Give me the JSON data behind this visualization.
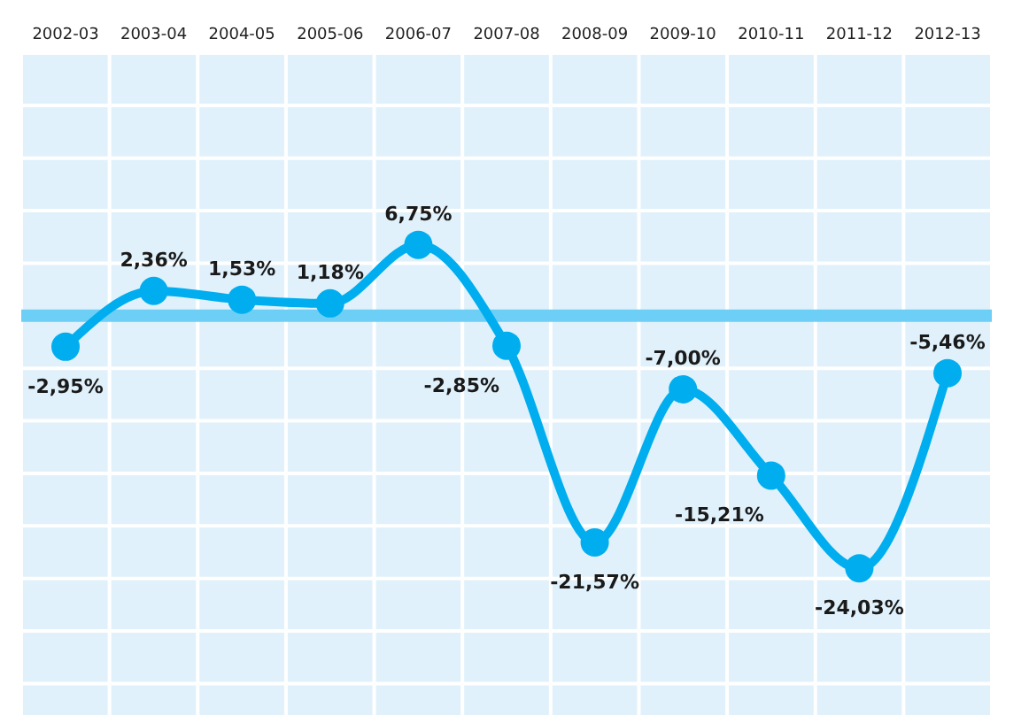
{
  "chart_data": {
    "type": "line",
    "categories": [
      "2002-03",
      "2003-04",
      "2004-05",
      "2005-06",
      "2006-07",
      "2007-08",
      "2008-09",
      "2009-10",
      "2010-11",
      "2011-12",
      "2012-13"
    ],
    "series": [
      {
        "color": "#00aeef",
        "values": [
          -2.95,
          2.36,
          1.53,
          1.18,
          6.75,
          -2.85,
          -21.57,
          -7.0,
          -15.21,
          -24.03,
          -5.46
        ],
        "value_labels": [
          "-2,95%",
          "2,36%",
          "1,53%",
          "1,18%",
          "6,75%",
          "-2,85%",
          "-21,57%",
          "-7,00%",
          "-15,21%",
          "-24,03%",
          "-5,46%"
        ]
      }
    ],
    "ylim": [
      -38,
      25
    ],
    "yticks": [
      {
        "value": -35,
        "label": null
      },
      {
        "value": -30,
        "label": null
      },
      {
        "value": -25,
        "label": null
      },
      {
        "value": -20,
        "label": null
      },
      {
        "value": -15,
        "label": null
      },
      {
        "value": -10,
        "label": null
      },
      {
        "value": -5,
        "label": null
      },
      {
        "value": 0,
        "label": null
      },
      {
        "value": 5,
        "label": null
      },
      {
        "value": 10,
        "label": null
      },
      {
        "value": 15,
        "label": null
      },
      {
        "value": 20,
        "label": null
      },
      {
        "value": 25,
        "label": null
      }
    ],
    "tick_labels": "x",
    "grid": true,
    "marker": "circle",
    "line_style": "solid",
    "ref_lines": [
      {
        "axis": "y",
        "value": 0,
        "label": null,
        "color": "#6dcff6"
      }
    ]
  }
}
